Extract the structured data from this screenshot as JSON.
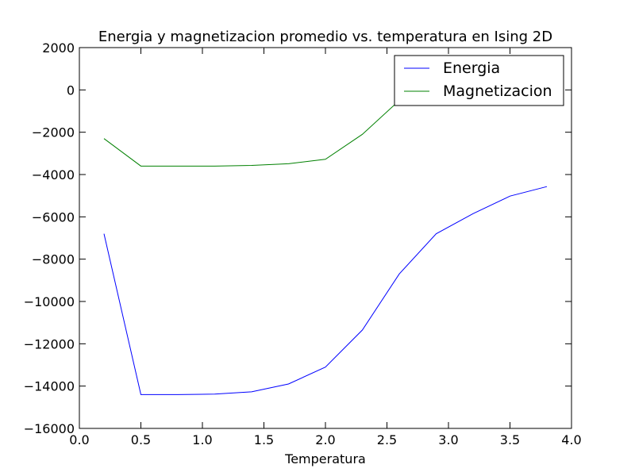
{
  "chart_data": {
    "type": "line",
    "title": "Energia y magnetizacion promedio vs. temperatura en Ising 2D",
    "xlabel": "Temperatura",
    "ylabel": "",
    "xlim": [
      0.0,
      4.0
    ],
    "ylim": [
      -16000,
      2000
    ],
    "x_ticks": [
      0.0,
      0.5,
      1.0,
      1.5,
      2.0,
      2.5,
      3.0,
      3.5,
      4.0
    ],
    "x_tick_labels": [
      "0.0",
      "0.5",
      "1.0",
      "1.5",
      "2.0",
      "2.5",
      "3.0",
      "3.5",
      "4.0"
    ],
    "y_ticks": [
      2000,
      0,
      -2000,
      -4000,
      -6000,
      -8000,
      -10000,
      -12000,
      -14000,
      -16000
    ],
    "y_tick_labels": [
      "2000",
      "0",
      "−2000",
      "−4000",
      "−6000",
      "−8000",
      "−10000",
      "−12000",
      "−14000",
      "−16000"
    ],
    "grid": false,
    "legend_position": "top-right",
    "x": [
      0.2,
      0.5,
      0.8,
      1.1,
      1.4,
      1.7,
      2.0,
      2.3,
      2.6,
      2.9,
      3.2,
      3.5,
      3.8
    ],
    "series": [
      {
        "name": "Energia",
        "color": "#0000ff",
        "values": [
          -6800,
          -14400,
          -14400,
          -14380,
          -14270,
          -13900,
          -13100,
          -11350,
          -8700,
          -6800,
          -5850,
          -5020,
          -4570
        ]
      },
      {
        "name": "Magnetizacion",
        "color": "#008000",
        "values": [
          -2300,
          -3600,
          -3600,
          -3600,
          -3570,
          -3490,
          -3280,
          -2100,
          -500,
          700,
          900,
          1000,
          1000
        ]
      }
    ]
  }
}
